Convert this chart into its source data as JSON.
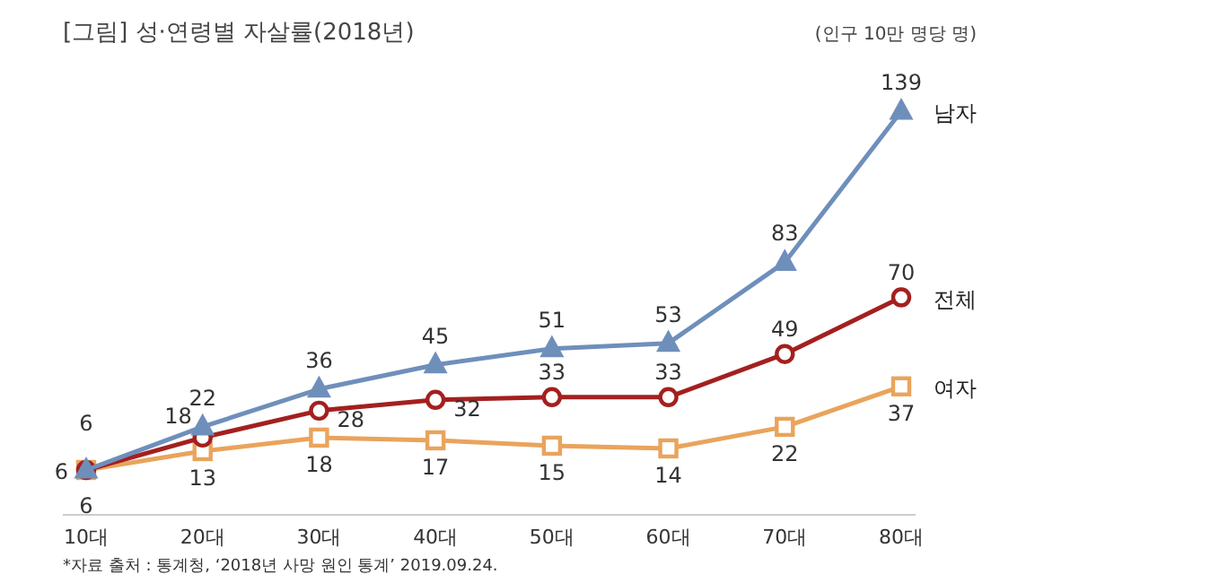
{
  "chart_data": {
    "type": "line",
    "title": "[그림] 성·연령별 자살률(2018년)",
    "annotations": [
      "(인구 10만 명당 명)",
      "*자료 출처 : 통계청, ‘2018년 사망 원인 통계’ 2019.09.24."
    ],
    "categories": [
      "10대",
      "20대",
      "30대",
      "40대",
      "50대",
      "60대",
      "70대",
      "80대"
    ],
    "series": [
      {
        "name": "남자",
        "color": "#6f8fbb",
        "marker": "triangle",
        "values": [
          6,
          22,
          36,
          45,
          51,
          53,
          83,
          139
        ]
      },
      {
        "name": "전체",
        "color": "#a3201f",
        "marker": "circle",
        "values": [
          6,
          18,
          28,
          32,
          33,
          33,
          49,
          70
        ]
      },
      {
        "name": "여자",
        "color": "#e9a45c",
        "marker": "square",
        "values": [
          6,
          13,
          18,
          17,
          15,
          14,
          22,
          37
        ]
      }
    ],
    "data_labels": true
  }
}
